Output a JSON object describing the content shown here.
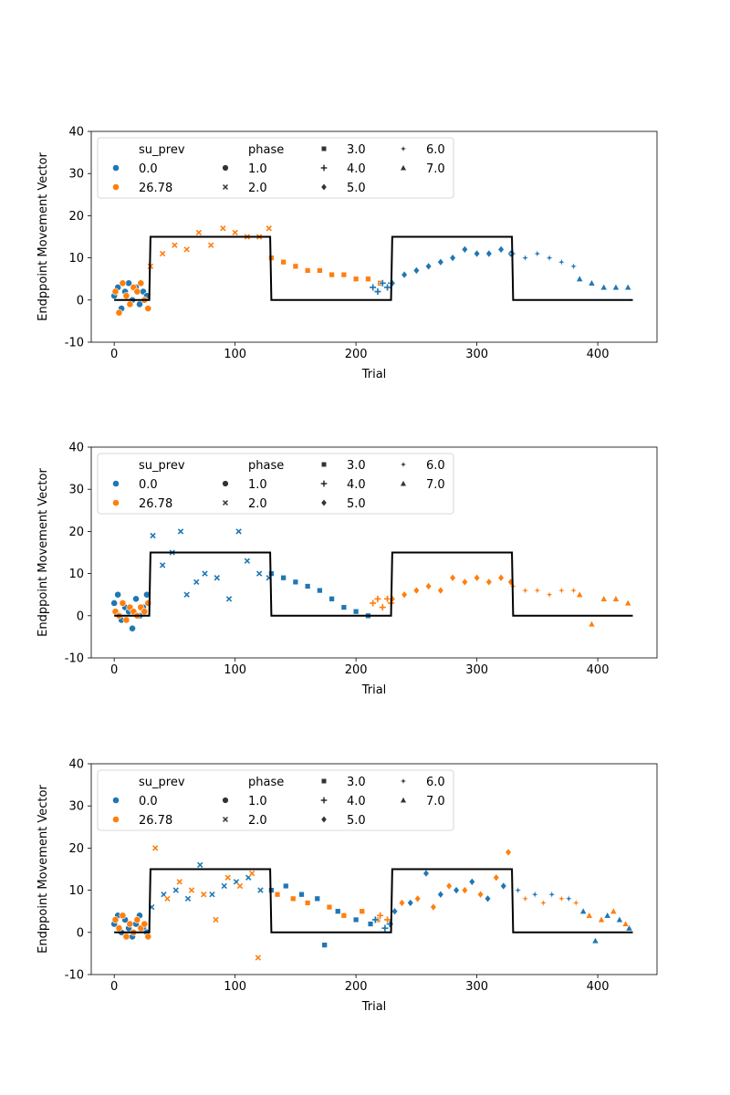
{
  "chart_data": [
    {
      "type": "scatter",
      "xlabel": "Trial",
      "ylabel": "Endppoint Movement Vector",
      "xlim": [
        -19,
        449
      ],
      "ylim": [
        -10,
        40
      ],
      "xticks": [
        0,
        100,
        200,
        300,
        400
      ],
      "yticks": [
        -10,
        0,
        10,
        20,
        30,
        40
      ],
      "legend": {
        "placement": "upper-left",
        "hue_title": "su_prev",
        "hue_entries": [
          {
            "label": "0.0",
            "color": "#1f77b4"
          },
          {
            "label": "26.78",
            "color": "#ff7f0e"
          }
        ],
        "style_title": "phase",
        "style_entries": [
          {
            "label": "1.0",
            "marker": "circle"
          },
          {
            "label": "2.0",
            "marker": "x"
          },
          {
            "label": "3.0",
            "marker": "square"
          },
          {
            "label": "4.0",
            "marker": "plus"
          },
          {
            "label": "5.0",
            "marker": "diamond"
          },
          {
            "label": "6.0",
            "marker": "star"
          },
          {
            "label": "7.0",
            "marker": "triangle"
          }
        ]
      },
      "perturbation_line": {
        "color": "#000000",
        "x": [
          0,
          29,
          30,
          129,
          130,
          229,
          230,
          329,
          330,
          429
        ],
        "y": [
          0,
          0,
          15,
          15,
          0,
          0,
          15,
          15,
          0,
          0
        ]
      },
      "series": [
        {
          "su_prev": "0.0",
          "phase": "1.0",
          "x": [
            0,
            3,
            6,
            9,
            12,
            15,
            18,
            21,
            24,
            27
          ],
          "y": [
            1,
            3,
            -2,
            2,
            4,
            0,
            3,
            -1,
            2,
            1
          ]
        },
        {
          "su_prev": "26.78",
          "phase": "1.0",
          "x": [
            1,
            4,
            7,
            10,
            13,
            16,
            19,
            22,
            25,
            28
          ],
          "y": [
            2,
            -3,
            4,
            1,
            -1,
            3,
            2,
            4,
            0,
            -2
          ]
        },
        {
          "su_prev": "26.78",
          "phase": "2.0",
          "x": [
            30,
            40,
            50,
            60,
            70,
            80,
            90,
            100,
            110,
            120,
            128
          ],
          "y": [
            8,
            11,
            13,
            12,
            16,
            13,
            17,
            16,
            15,
            15,
            17
          ]
        },
        {
          "su_prev": "26.78",
          "phase": "3.0",
          "x": [
            130,
            140,
            150,
            160,
            170,
            180,
            190,
            200,
            210,
            220
          ],
          "y": [
            10,
            9,
            8,
            7,
            7,
            6,
            6,
            5,
            5,
            4
          ]
        },
        {
          "su_prev": "0.0",
          "phase": "4.0",
          "x": [
            214,
            218,
            222,
            226,
            229
          ],
          "y": [
            3,
            2,
            4,
            3,
            4
          ]
        },
        {
          "su_prev": "0.0",
          "phase": "5.0",
          "x": [
            230,
            240,
            250,
            260,
            270,
            280,
            290,
            300,
            310,
            320,
            328
          ],
          "y": [
            4,
            6,
            7,
            8,
            9,
            10,
            12,
            11,
            11,
            12,
            11
          ]
        },
        {
          "su_prev": "0.0",
          "phase": "6.0",
          "x": [
            330,
            340,
            350,
            360,
            370,
            380
          ],
          "y": [
            11,
            10,
            11,
            10,
            9,
            8
          ]
        },
        {
          "su_prev": "0.0",
          "phase": "7.0",
          "x": [
            385,
            395,
            405,
            415,
            425
          ],
          "y": [
            5,
            4,
            3,
            3,
            3
          ]
        }
      ]
    },
    {
      "type": "scatter",
      "xlabel": "Trial",
      "ylabel": "Endppoint Movement Vector",
      "xlim": [
        -19,
        449
      ],
      "ylim": [
        -10,
        40
      ],
      "xticks": [
        0,
        100,
        200,
        300,
        400
      ],
      "yticks": [
        -10,
        0,
        10,
        20,
        30,
        40
      ],
      "legend": {
        "placement": "upper-left",
        "hue_title": "su_prev",
        "hue_entries": [
          {
            "label": "0.0",
            "color": "#1f77b4"
          },
          {
            "label": "26.78",
            "color": "#ff7f0e"
          }
        ],
        "style_title": "phase",
        "style_entries": [
          {
            "label": "1.0",
            "marker": "circle"
          },
          {
            "label": "2.0",
            "marker": "x"
          },
          {
            "label": "3.0",
            "marker": "square"
          },
          {
            "label": "4.0",
            "marker": "plus"
          },
          {
            "label": "5.0",
            "marker": "diamond"
          },
          {
            "label": "6.0",
            "marker": "star"
          },
          {
            "label": "7.0",
            "marker": "triangle"
          }
        ]
      },
      "perturbation_line": {
        "color": "#000000",
        "x": [
          0,
          29,
          30,
          129,
          130,
          229,
          230,
          329,
          330,
          429
        ],
        "y": [
          0,
          0,
          15,
          15,
          0,
          0,
          15,
          15,
          0,
          0
        ]
      },
      "series": [
        {
          "su_prev": "0.0",
          "phase": "1.0",
          "x": [
            0,
            3,
            6,
            9,
            12,
            15,
            18,
            21,
            24,
            27
          ],
          "y": [
            3,
            5,
            -1,
            2,
            1,
            -3,
            4,
            0,
            2,
            5
          ]
        },
        {
          "su_prev": "26.78",
          "phase": "1.0",
          "x": [
            1,
            4,
            7,
            10,
            13,
            16,
            19,
            22,
            25,
            28
          ],
          "y": [
            1,
            0,
            3,
            -1,
            2,
            1,
            0,
            2,
            1,
            3
          ]
        },
        {
          "su_prev": "0.0",
          "phase": "2.0",
          "x": [
            32,
            40,
            48,
            55,
            60,
            68,
            75,
            85,
            95,
            103,
            110,
            120,
            128
          ],
          "y": [
            19,
            12,
            15,
            20,
            5,
            8,
            10,
            9,
            4,
            20,
            13,
            10,
            9
          ]
        },
        {
          "su_prev": "0.0",
          "phase": "3.0",
          "x": [
            130,
            140,
            150,
            160,
            170,
            180,
            190,
            200,
            210
          ],
          "y": [
            10,
            9,
            8,
            7,
            6,
            4,
            2,
            1,
            0
          ]
        },
        {
          "su_prev": "26.78",
          "phase": "4.0",
          "x": [
            214,
            218,
            222,
            226,
            229
          ],
          "y": [
            3,
            4,
            2,
            4,
            3
          ]
        },
        {
          "su_prev": "26.78",
          "phase": "5.0",
          "x": [
            230,
            240,
            250,
            260,
            270,
            280,
            290,
            300,
            310,
            320,
            328
          ],
          "y": [
            4,
            5,
            6,
            7,
            6,
            9,
            8,
            9,
            8,
            9,
            8
          ]
        },
        {
          "su_prev": "26.78",
          "phase": "6.0",
          "x": [
            330,
            340,
            350,
            360,
            370,
            380
          ],
          "y": [
            7,
            6,
            6,
            5,
            6,
            6
          ]
        },
        {
          "su_prev": "26.78",
          "phase": "7.0",
          "x": [
            385,
            395,
            405,
            415,
            425
          ],
          "y": [
            5,
            -2,
            4,
            4,
            3
          ]
        }
      ]
    },
    {
      "type": "scatter",
      "xlabel": "Trial",
      "ylabel": "Endppoint Movement Vector",
      "xlim": [
        -19,
        449
      ],
      "ylim": [
        -10,
        40
      ],
      "xticks": [
        0,
        100,
        200,
        300,
        400
      ],
      "yticks": [
        -10,
        0,
        10,
        20,
        30,
        40
      ],
      "legend": {
        "placement": "upper-left",
        "hue_title": "su_prev",
        "hue_entries": [
          {
            "label": "0.0",
            "color": "#1f77b4"
          },
          {
            "label": "26.78",
            "color": "#ff7f0e"
          }
        ],
        "style_title": "phase",
        "style_entries": [
          {
            "label": "1.0",
            "marker": "circle"
          },
          {
            "label": "2.0",
            "marker": "x"
          },
          {
            "label": "3.0",
            "marker": "square"
          },
          {
            "label": "4.0",
            "marker": "plus"
          },
          {
            "label": "5.0",
            "marker": "diamond"
          },
          {
            "label": "6.0",
            "marker": "star"
          },
          {
            "label": "7.0",
            "marker": "triangle"
          }
        ]
      },
      "perturbation_line": {
        "color": "#000000",
        "x": [
          0,
          29,
          30,
          129,
          130,
          229,
          230,
          329,
          330,
          429
        ],
        "y": [
          0,
          0,
          15,
          15,
          0,
          0,
          15,
          15,
          0,
          0
        ]
      },
      "series": [
        {
          "su_prev": "0.0",
          "phase": "1.0",
          "x": [
            0,
            3,
            6,
            9,
            12,
            15,
            18,
            21,
            24,
            27
          ],
          "y": [
            2,
            4,
            0,
            3,
            1,
            -1,
            2,
            4,
            1,
            0
          ]
        },
        {
          "su_prev": "26.78",
          "phase": "1.0",
          "x": [
            1,
            4,
            7,
            10,
            13,
            16,
            19,
            22,
            25,
            28
          ],
          "y": [
            3,
            1,
            4,
            -1,
            2,
            0,
            3,
            1,
            2,
            -1
          ]
        },
        {
          "su_prev": "0.0",
          "phase": "2.0",
          "x": [
            31,
            41,
            51,
            61,
            71,
            81,
            91,
            101,
            111,
            121
          ],
          "y": [
            6,
            9,
            10,
            8,
            16,
            9,
            11,
            12,
            13,
            10
          ]
        },
        {
          "su_prev": "26.78",
          "phase": "2.0",
          "x": [
            34,
            44,
            54,
            64,
            74,
            84,
            94,
            104,
            114,
            119
          ],
          "y": [
            20,
            8,
            12,
            10,
            9,
            3,
            13,
            11,
            14,
            -6
          ]
        },
        {
          "su_prev": "0.0",
          "phase": "3.0",
          "x": [
            130,
            142,
            155,
            168,
            174,
            185,
            200,
            212
          ],
          "y": [
            10,
            11,
            9,
            8,
            -3,
            5,
            3,
            2
          ]
        },
        {
          "su_prev": "26.78",
          "phase": "3.0",
          "x": [
            135,
            148,
            160,
            178,
            190,
            205,
            218
          ],
          "y": [
            9,
            8,
            7,
            6,
            4,
            5,
            3
          ]
        },
        {
          "su_prev": "0.0",
          "phase": "4.0",
          "x": [
            216,
            224,
            228
          ],
          "y": [
            3,
            1,
            2
          ]
        },
        {
          "su_prev": "26.78",
          "phase": "4.0",
          "x": [
            220,
            226
          ],
          "y": [
            4,
            3
          ]
        },
        {
          "su_prev": "0.0",
          "phase": "5.0",
          "x": [
            232,
            245,
            258,
            270,
            283,
            296,
            309,
            322
          ],
          "y": [
            5,
            7,
            14,
            9,
            10,
            12,
            8,
            11
          ]
        },
        {
          "su_prev": "26.78",
          "phase": "5.0",
          "x": [
            238,
            251,
            264,
            277,
            290,
            303,
            316,
            326
          ],
          "y": [
            7,
            8,
            6,
            11,
            10,
            9,
            13,
            19
          ]
        },
        {
          "su_prev": "0.0",
          "phase": "6.0",
          "x": [
            334,
            348,
            362,
            376
          ],
          "y": [
            10,
            9,
            9,
            8
          ]
        },
        {
          "su_prev": "26.78",
          "phase": "6.0",
          "x": [
            340,
            355,
            370,
            382
          ],
          "y": [
            8,
            7,
            8,
            7
          ]
        },
        {
          "su_prev": "0.0",
          "phase": "7.0",
          "x": [
            388,
            398,
            408,
            418,
            426
          ],
          "y": [
            5,
            -2,
            4,
            3,
            1
          ]
        },
        {
          "su_prev": "26.78",
          "phase": "7.0",
          "x": [
            393,
            403,
            413,
            423
          ],
          "y": [
            4,
            3,
            5,
            2
          ]
        }
      ]
    }
  ]
}
